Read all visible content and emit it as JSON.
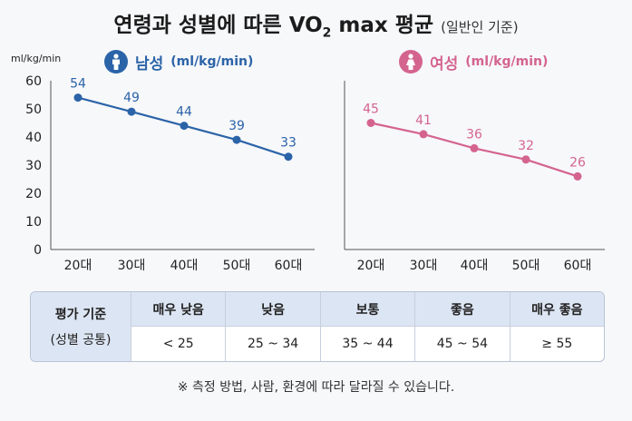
{
  "title": {
    "main_prefix": "연령과 성별에 따른 VO",
    "main_sub": "2",
    "main_suffix": " max 평균",
    "paren": "(일반인 기준)"
  },
  "y_unit": "ml/kg/min",
  "colors": {
    "male": "#2b63a8",
    "female": "#d4648e",
    "axis": "#555555",
    "grid": "#d8dce3"
  },
  "chart_data": [
    {
      "type": "line",
      "panel_label": "남성",
      "panel_unit": "(ml/kg/min)",
      "icon": "male-person-icon",
      "categories": [
        "20대",
        "30대",
        "40대",
        "50대",
        "60대"
      ],
      "values": [
        54,
        49,
        44,
        39,
        33
      ],
      "yticks": [
        0,
        10,
        20,
        30,
        40,
        50,
        60
      ],
      "ylim": [
        0,
        60
      ],
      "ylabel": "ml/kg/min"
    },
    {
      "type": "line",
      "panel_label": "여성",
      "panel_unit": "(ml/kg/min)",
      "icon": "female-person-icon",
      "categories": [
        "20대",
        "30대",
        "40대",
        "50대",
        "60대"
      ],
      "values": [
        45,
        41,
        36,
        32,
        26
      ],
      "ylim": [
        0,
        60
      ]
    }
  ],
  "table": {
    "row_header_1": "평가 기준",
    "row_header_2": "(성별 공통)",
    "headers": [
      "매우 낮음",
      "낮음",
      "보통",
      "좋음",
      "매우 좋음"
    ],
    "values": [
      "< 25",
      "25 ~ 34",
      "35 ~ 44",
      "45 ~ 54",
      "≥ 55"
    ]
  },
  "note": "※ 측정 방법, 사람, 환경에 따라 달라질 수 있습니다."
}
